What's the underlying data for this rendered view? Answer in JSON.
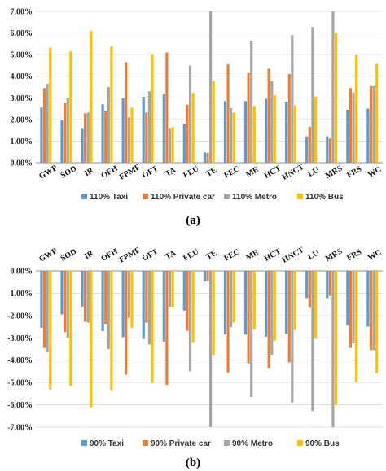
{
  "chart_data": [
    {
      "type": "bar",
      "panel_label": "(a)",
      "categories": [
        "GWP",
        "SOD",
        "IR",
        "OFH",
        "FPMF",
        "OFT",
        "TA",
        "FEU",
        "TE",
        "FEC",
        "ME",
        "HCT",
        "HNCT",
        "LU",
        "MRS",
        "FRS",
        "WC"
      ],
      "ylim": [
        0,
        7
      ],
      "yticks": [
        "0.00%",
        "1.00%",
        "2.00%",
        "3.00%",
        "4.00%",
        "5.00%",
        "6.00%",
        "7.00%"
      ],
      "grid": true,
      "legend_position": "bottom",
      "series": [
        {
          "name": "110% Taxi",
          "values": [
            2.55,
            1.95,
            1.6,
            2.7,
            2.97,
            3.05,
            3.18,
            1.78,
            0.48,
            2.85,
            2.85,
            2.95,
            2.82,
            1.22,
            1.22,
            2.45,
            2.5
          ]
        },
        {
          "name": "110% Private car",
          "values": [
            3.45,
            2.75,
            2.28,
            2.38,
            4.65,
            2.32,
            5.1,
            2.68,
            0.45,
            4.55,
            4.15,
            4.35,
            4.1,
            1.65,
            1.12,
            3.45,
            3.55
          ]
        },
        {
          "name": "110% Metro",
          "values": [
            3.65,
            2.98,
            2.32,
            3.5,
            2.1,
            3.3,
            1.6,
            4.5,
            7.0,
            2.52,
            5.65,
            3.78,
            5.9,
            6.28,
            7.0,
            3.25,
            3.55
          ]
        },
        {
          "name": "110% Bus",
          "values": [
            5.32,
            5.15,
            6.1,
            5.38,
            2.55,
            5.02,
            1.65,
            3.22,
            3.78,
            2.32,
            2.62,
            3.12,
            2.65,
            3.05,
            6.02,
            5.0,
            4.58
          ]
        }
      ]
    },
    {
      "type": "bar",
      "panel_label": "(b)",
      "categories": [
        "GWP",
        "SOD",
        "IR",
        "OFH",
        "FPMF",
        "OFT",
        "TA",
        "FEU",
        "TE",
        "FEC",
        "ME",
        "HCT",
        "HNCT",
        "LU",
        "MRS",
        "FRS",
        "WC"
      ],
      "ylim": [
        -7,
        0
      ],
      "yticks": [
        "0.00%",
        "-1.00%",
        "-2.00%",
        "-3.00%",
        "-4.00%",
        "-5.00%",
        "-6.00%",
        "-7.00%"
      ],
      "grid": true,
      "legend_position": "bottom",
      "series": [
        {
          "name": "90% Taxi",
          "values": [
            -2.55,
            -1.95,
            -1.6,
            -2.7,
            -2.97,
            -3.05,
            -3.18,
            -1.78,
            -0.48,
            -2.85,
            -2.85,
            -2.95,
            -2.82,
            -1.22,
            -1.22,
            -2.45,
            -2.5
          ]
        },
        {
          "name": "90% Private car",
          "values": [
            -3.45,
            -2.75,
            -2.28,
            -2.38,
            -4.65,
            -2.32,
            -5.1,
            -2.68,
            -0.45,
            -4.55,
            -4.15,
            -4.35,
            -4.1,
            -1.65,
            -1.12,
            -3.45,
            -3.55
          ]
        },
        {
          "name": "90% Metro",
          "values": [
            -3.65,
            -2.98,
            -2.32,
            -3.5,
            -2.1,
            -3.3,
            -1.6,
            -4.5,
            -7.0,
            -2.52,
            -5.65,
            -3.78,
            -5.9,
            -6.28,
            -7.0,
            -3.25,
            -3.55
          ]
        },
        {
          "name": "90% Bus",
          "values": [
            -5.32,
            -5.15,
            -6.1,
            -5.38,
            -2.55,
            -5.02,
            -1.65,
            -3.22,
            -3.78,
            -2.32,
            -2.62,
            -3.12,
            -2.65,
            -3.05,
            -6.02,
            -5.0,
            -4.58
          ]
        }
      ]
    }
  ],
  "colors": {
    "taxi": "#5b9bd5",
    "private_car": "#ed7d31",
    "metro": "#a5a5a5",
    "bus": "#ffc000"
  }
}
